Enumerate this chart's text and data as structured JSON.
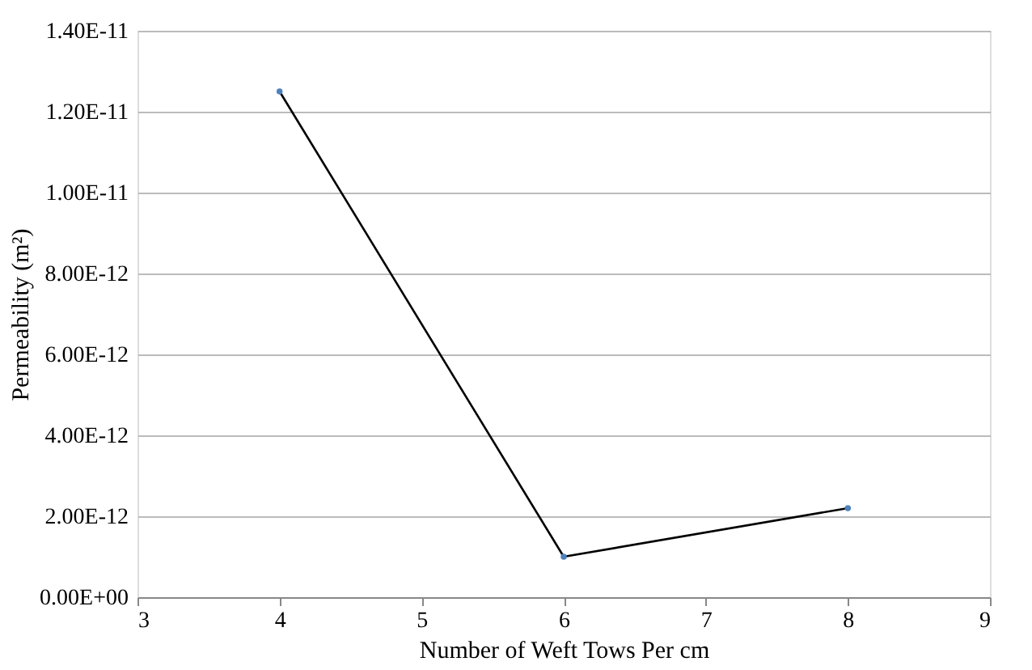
{
  "chart_data": {
    "type": "line",
    "xlabel": "Number of Weft Tows Per cm",
    "ylabel": "Permeability (m²)",
    "x": [
      4,
      6,
      8
    ],
    "series": [
      {
        "color": "#000000",
        "values": [
          1.25e-11,
          1e-12,
          2.2e-12
        ]
      }
    ],
    "xlim": [
      3,
      9
    ],
    "xticks": [
      3,
      4,
      5,
      6,
      7,
      8,
      9
    ],
    "ylim": [
      0,
      1.4e-11
    ],
    "yticks": [
      {
        "value": 0,
        "label": "0.00E+00"
      },
      {
        "value": 2e-12,
        "label": "2.00E-12"
      },
      {
        "value": 4e-12,
        "label": "4.00E-12"
      },
      {
        "value": 6e-12,
        "label": "6.00E-12"
      },
      {
        "value": 8e-12,
        "label": "8.00E-12"
      },
      {
        "value": 1e-11,
        "label": "1.00E-11"
      },
      {
        "value": 1.2e-11,
        "label": "1.20E-11"
      },
      {
        "value": 1.4e-11,
        "label": "1.40E-11"
      }
    ],
    "grid": "y",
    "marker": "circle",
    "line_style": "solid"
  }
}
